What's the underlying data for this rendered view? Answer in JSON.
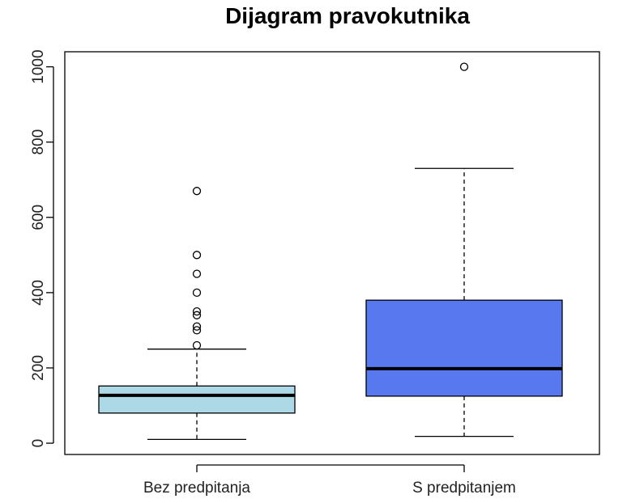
{
  "chart_data": {
    "type": "boxplot",
    "title": "Dijagram pravokutnika",
    "xlabel": "",
    "ylabel": "",
    "ylim": [
      -30,
      1040
    ],
    "yticks": [
      0,
      200,
      400,
      600,
      800,
      1000
    ],
    "ytick_labels": [
      "0",
      "200",
      "400",
      "600",
      "800",
      "1000"
    ],
    "categories": [
      "Bez predpitanja",
      "S predpitanjem"
    ],
    "series": [
      {
        "category": "Bez predpitanja",
        "color": "#add8e6",
        "whisker_low": 10,
        "q1": 80,
        "median": 127,
        "q3": 152,
        "whisker_high": 250,
        "outliers": [
          260,
          300,
          310,
          340,
          350,
          400,
          450,
          500,
          670
        ]
      },
      {
        "category": "S predpitanjem",
        "color": "#5778ee",
        "whisker_low": 18,
        "q1": 125,
        "median": 198,
        "q3": 380,
        "whisker_high": 730,
        "outliers": [
          1000
        ]
      }
    ],
    "grid": false,
    "legend": "none"
  }
}
